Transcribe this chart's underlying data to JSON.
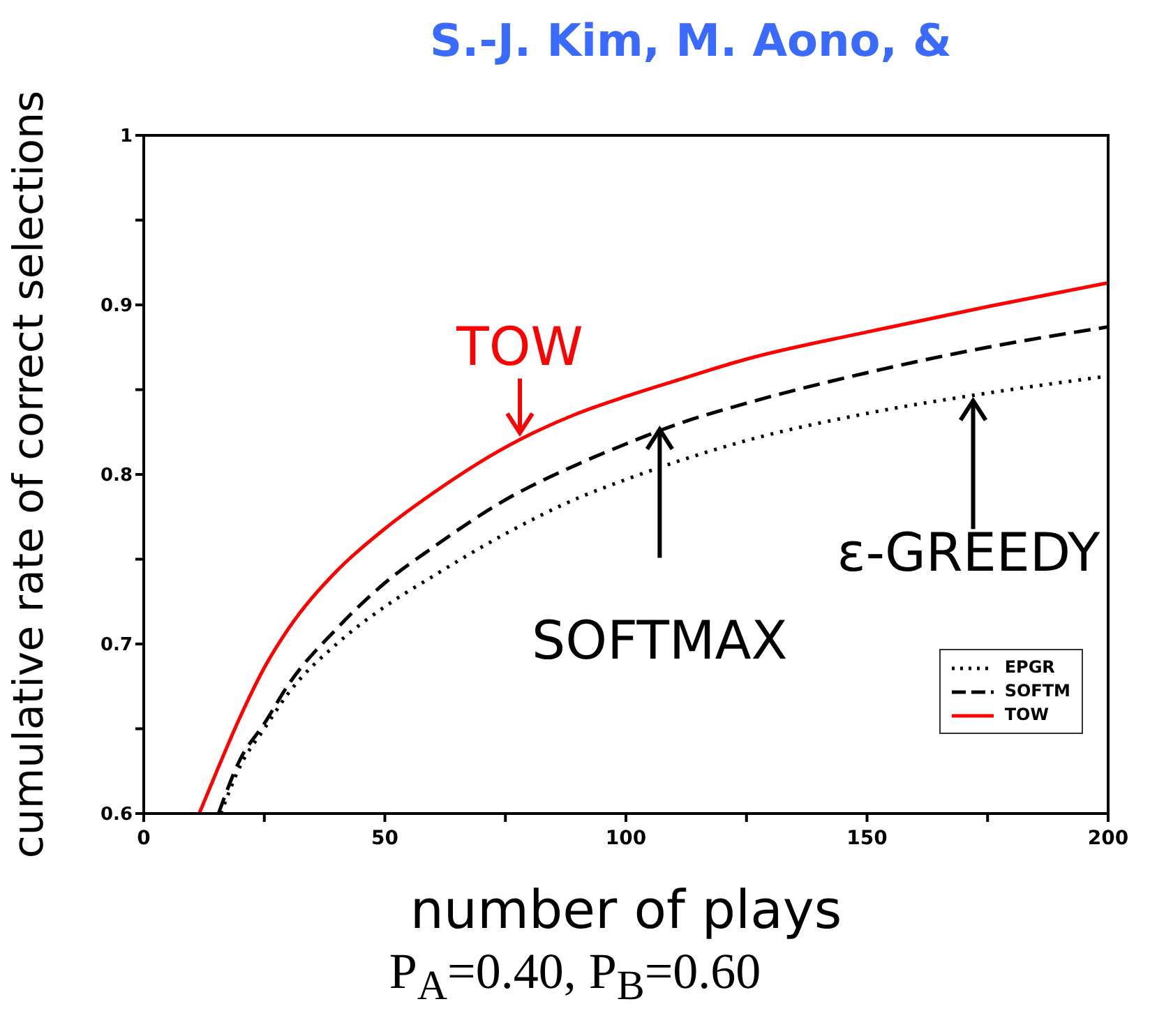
{
  "chart_data": {
    "type": "line",
    "title": "S.-J. Kim, M. Aono, &",
    "xlabel": "number of plays",
    "ylabel": "cumulative rate of correct selections",
    "xlim": [
      0,
      200
    ],
    "ylim": [
      0.6,
      1
    ],
    "xticks": [
      0,
      {
        "value": 25,
        "label": null
      },
      50,
      {
        "value": 75,
        "label": null
      },
      100,
      {
        "value": 125,
        "label": null
      },
      150,
      {
        "value": 175,
        "label": null
      },
      200
    ],
    "yticks": [
      0.6,
      {
        "value": 0.65,
        "label": null
      },
      0.7,
      {
        "value": 0.75,
        "label": null
      },
      0.8,
      {
        "value": 0.85,
        "label": null
      },
      0.9,
      {
        "value": 0.95,
        "label": null
      },
      1
    ],
    "legend": "bottom right",
    "marker": "none",
    "series": [
      {
        "name": "EPGR",
        "color": "#000000",
        "line_style": "dotted",
        "x": [
          16,
          20,
          25,
          30,
          40,
          50,
          60,
          75,
          90,
          100,
          110,
          125,
          150,
          175,
          200
        ],
        "values": [
          0.6,
          0.628,
          0.65,
          0.671,
          0.7,
          0.722,
          0.74,
          0.765,
          0.786,
          0.797,
          0.807,
          0.82,
          0.836,
          0.848,
          0.858
        ]
      },
      {
        "name": "SOFTM",
        "color": "#000000",
        "line_style": "dashed",
        "x": [
          15.5,
          20,
          25,
          30,
          40,
          50,
          60,
          75,
          90,
          100,
          110,
          125,
          150,
          175,
          200
        ],
        "values": [
          0.6,
          0.632,
          0.653,
          0.676,
          0.709,
          0.736,
          0.757,
          0.785,
          0.806,
          0.818,
          0.829,
          0.842,
          0.86,
          0.875,
          0.887
        ]
      },
      {
        "name": "TOW",
        "color": "#ff0000",
        "line_style": "solid",
        "x": [
          11.5,
          15,
          20,
          25,
          30,
          40,
          50,
          60,
          75,
          90,
          100,
          110,
          125,
          150,
          175,
          200
        ],
        "values": [
          0.6,
          0.624,
          0.657,
          0.686,
          0.709,
          0.743,
          0.768,
          0.789,
          0.816,
          0.836,
          0.846,
          0.855,
          0.868,
          0.884,
          0.899,
          0.913
        ]
      }
    ],
    "annotations": [
      {
        "text": "TOW",
        "x": 78,
        "y": 0.822
      },
      {
        "text": "SOFTMAX",
        "x": 107,
        "y": 0.829
      },
      {
        "text": "ε-GREEDY",
        "x": 172,
        "y": 0.846
      },
      "P$_{A}$=0.40,  P$_{B}$=0.60"
    ]
  }
}
